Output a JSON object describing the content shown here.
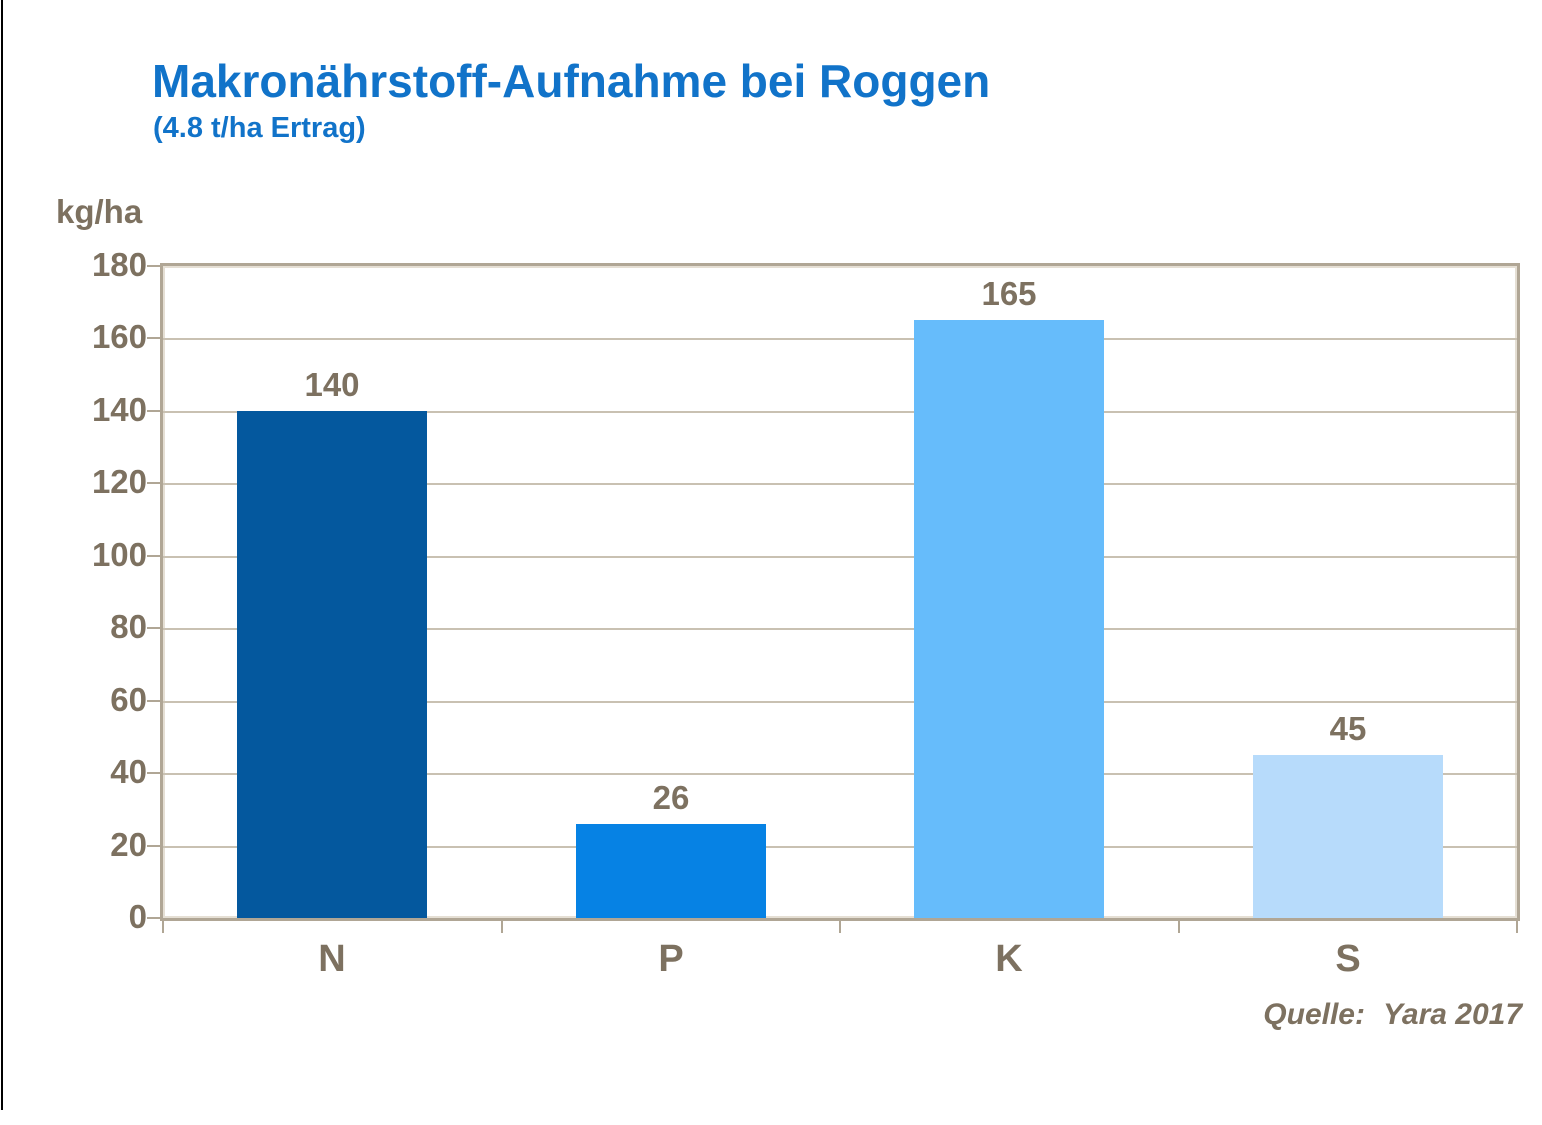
{
  "page": {
    "title": "Makronährstoff-Aufnahme bei Roggen",
    "subtitle": "(4.8 t/ha Ertrag)",
    "source_label": "Quelle:",
    "source_value": "Yara 2017"
  },
  "chart_data": {
    "type": "bar",
    "title": "Makronährstoff-Aufnahme bei Roggen",
    "subtitle": "(4.8 t/ha Ertrag)",
    "ylabel": "kg/ha",
    "xlabel": "",
    "categories": [
      "N",
      "P",
      "K",
      "S"
    ],
    "values": [
      140,
      26,
      165,
      45
    ],
    "value_labels": [
      "140",
      "26",
      "165",
      "45"
    ],
    "bar_colors": [
      "#04589e",
      "#0682e4",
      "#66bcfb",
      "#b7dbfb"
    ],
    "ylim": [
      0,
      180
    ],
    "yticks": [
      0,
      20,
      40,
      60,
      80,
      100,
      120,
      140,
      160,
      180
    ],
    "grid": true,
    "legend": "none",
    "source": "Quelle: Yara 2017",
    "colors": {
      "title_blue": "#1173c9",
      "axis_text_brown": "#7d7160",
      "frame_tan": "#b0a695",
      "gridline_tan": "#c9c1b2",
      "background": "#ffffff"
    }
  }
}
